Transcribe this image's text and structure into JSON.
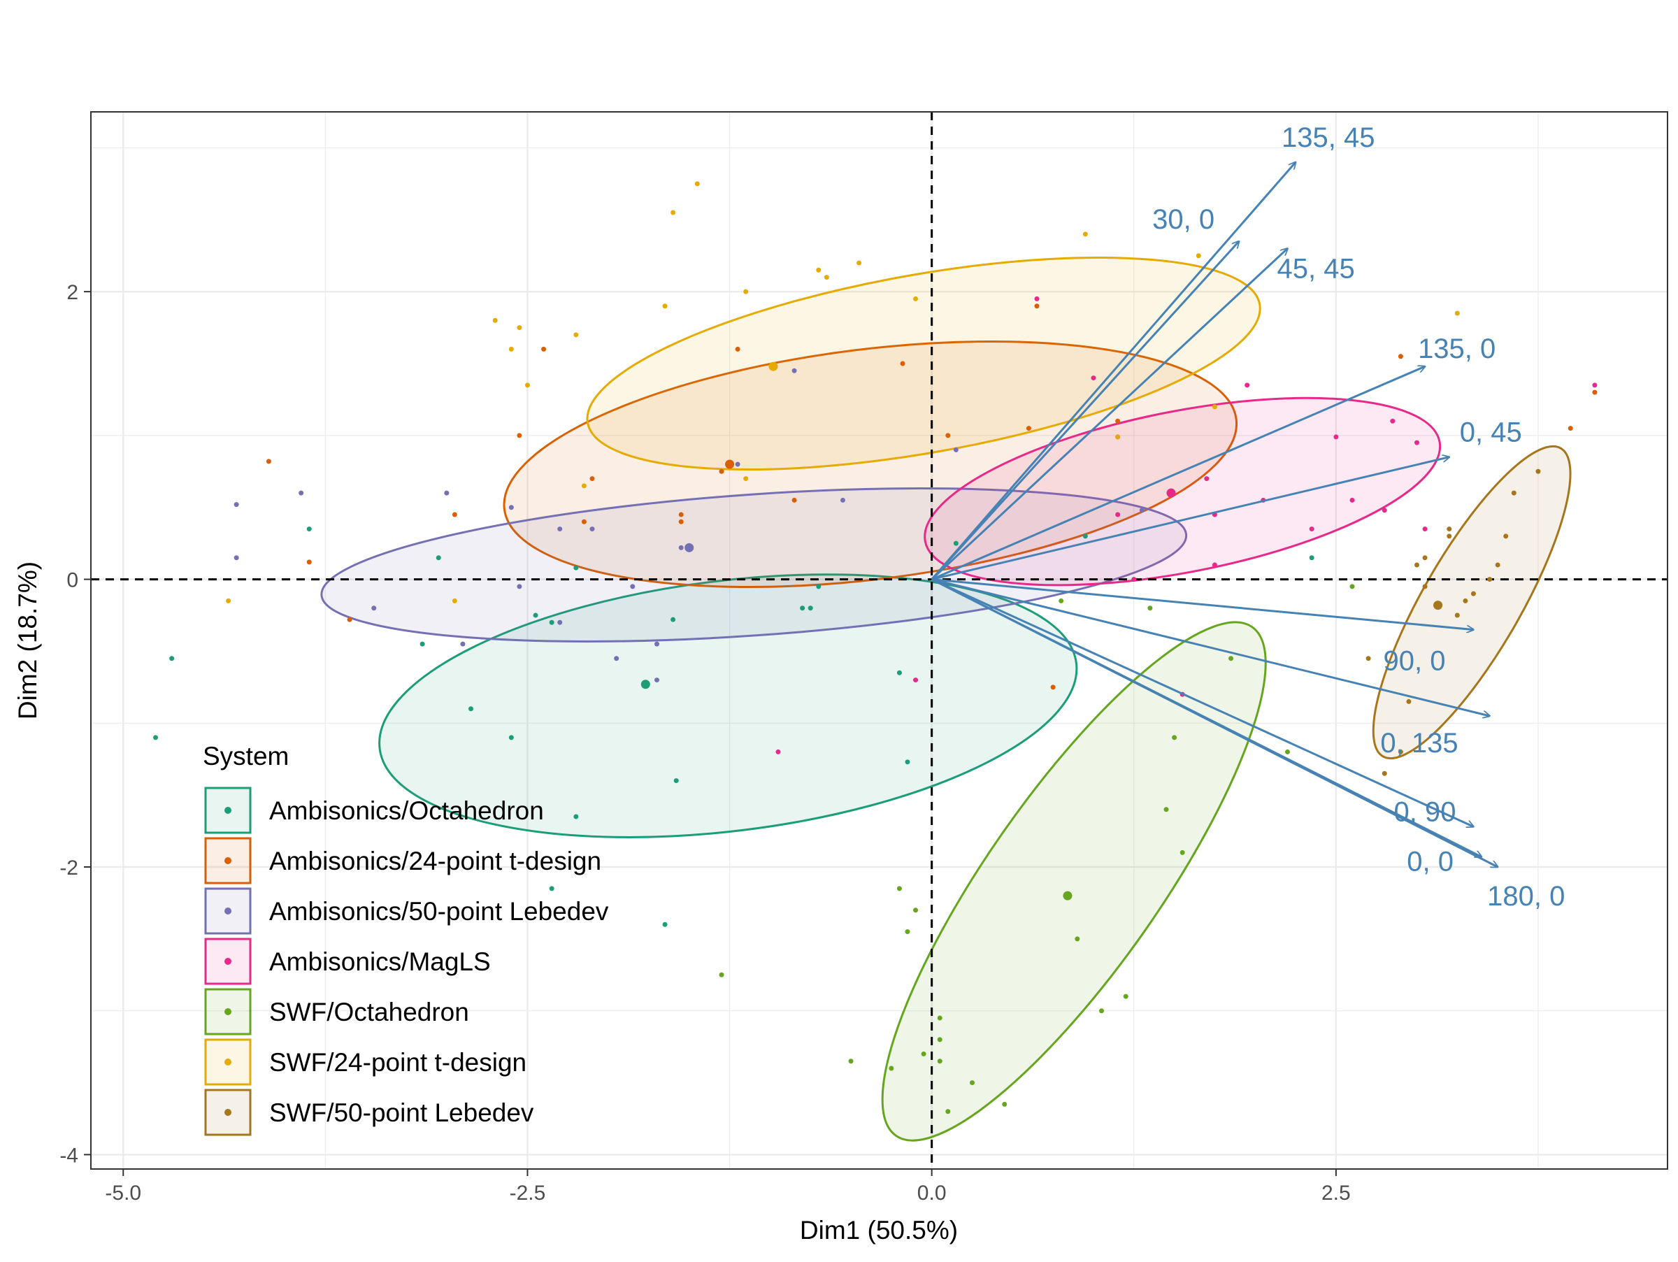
{
  "chart_data": {
    "type": "scatter",
    "title": "",
    "xlabel": "Dim1 (50.5%)",
    "ylabel": "Dim2 (18.7%)",
    "xlim": [
      -5.2,
      4.55
    ],
    "ylim": [
      -4.1,
      3.25
    ],
    "x_ticks": [
      -5.0,
      -2.5,
      0.0,
      2.5
    ],
    "x_tick_labels": [
      "-5.0",
      "-2.5",
      "0.0",
      "2.5"
    ],
    "y_ticks": [
      -4,
      -2,
      0,
      2
    ],
    "y_tick_labels": [
      "-4",
      "-2",
      "0",
      "2"
    ],
    "grid": true,
    "reference_lines": {
      "x": 0,
      "y": 0,
      "style": "dashed"
    },
    "legend": {
      "title": "System",
      "position": "bottom-left",
      "entries": [
        {
          "label": "Ambisonics/Octahedron",
          "color": "#1b9e77"
        },
        {
          "label": "Ambisonics/24-point t-design",
          "color": "#d95f02"
        },
        {
          "label": "Ambisonics/50-point Lebedev",
          "color": "#7570b3"
        },
        {
          "label": "Ambisonics/MagLS",
          "color": "#e7298a"
        },
        {
          "label": "SWF/Octahedron",
          "color": "#66a61e"
        },
        {
          "label": "SWF/24-point t-design",
          "color": "#e6ab02"
        },
        {
          "label": "SWF/50-point Lebedev",
          "color": "#a6761d"
        }
      ]
    },
    "series": [
      {
        "name": "Ambisonics/Octahedron",
        "color": "#1b9e77",
        "centroid": [
          -1.77,
          -0.73
        ],
        "ellipse": {
          "cx": -1.26,
          "cy": -0.88,
          "rx": 2.17,
          "ry": 0.87,
          "angle_deg": 7
        },
        "points": [
          [
            -4.8,
            -1.1
          ],
          [
            -4.7,
            -0.55
          ],
          [
            -3.85,
            0.35
          ],
          [
            -3.05,
            0.15
          ],
          [
            -3.15,
            -0.45
          ],
          [
            -2.85,
            -0.9
          ],
          [
            -2.6,
            -1.1
          ],
          [
            -2.45,
            -0.25
          ],
          [
            -2.35,
            -0.3
          ],
          [
            -2.2,
            0.08
          ],
          [
            -2.2,
            -1.65
          ],
          [
            -2.35,
            -2.15
          ],
          [
            -1.65,
            -2.4
          ],
          [
            -1.6,
            -0.28
          ],
          [
            -1.58,
            -1.4
          ],
          [
            -0.8,
            -0.2
          ],
          [
            -0.75,
            -0.2
          ],
          [
            -0.7,
            -0.05
          ],
          [
            -0.2,
            -0.65
          ],
          [
            -0.15,
            -1.27
          ],
          [
            0.15,
            0.25
          ],
          [
            0.95,
            0.3
          ],
          [
            2.35,
            0.15
          ]
        ]
      },
      {
        "name": "Ambisonics/24-point t-design",
        "color": "#d95f02",
        "centroid": [
          -1.25,
          0.8
        ],
        "ellipse": {
          "cx": -0.38,
          "cy": 0.8,
          "rx": 2.28,
          "ry": 0.8,
          "angle_deg": 7
        },
        "points": [
          [
            -4.1,
            0.82
          ],
          [
            -3.85,
            0.12
          ],
          [
            -3.6,
            -0.28
          ],
          [
            -2.95,
            0.45
          ],
          [
            -2.55,
            1.0
          ],
          [
            -2.4,
            1.6
          ],
          [
            -2.1,
            0.7
          ],
          [
            -2.15,
            0.4
          ],
          [
            -1.55,
            0.4
          ],
          [
            -1.55,
            0.45
          ],
          [
            -1.3,
            0.75
          ],
          [
            -1.2,
            1.6
          ],
          [
            -0.85,
            0.55
          ],
          [
            -0.18,
            1.5
          ],
          [
            0.1,
            1.0
          ],
          [
            0.6,
            1.05
          ],
          [
            0.65,
            1.9
          ],
          [
            0.75,
            -0.75
          ],
          [
            1.15,
            1.1
          ],
          [
            2.9,
            1.55
          ],
          [
            3.95,
            1.05
          ],
          [
            4.1,
            1.3
          ]
        ]
      },
      {
        "name": "Ambisonics/50-point Lebedev",
        "color": "#7570b3",
        "centroid": [
          -1.5,
          0.22
        ],
        "ellipse": {
          "cx": -1.1,
          "cy": 0.1,
          "rx": 2.68,
          "ry": 0.49,
          "angle_deg": 4
        },
        "points": [
          [
            -4.3,
            0.15
          ],
          [
            -4.3,
            0.52
          ],
          [
            -3.9,
            0.6
          ],
          [
            -3.45,
            -0.2
          ],
          [
            -3.0,
            0.6
          ],
          [
            -2.9,
            -0.45
          ],
          [
            -2.6,
            0.5
          ],
          [
            -2.55,
            -0.05
          ],
          [
            -2.3,
            0.35
          ],
          [
            -2.3,
            -0.3
          ],
          [
            -2.1,
            0.35
          ],
          [
            -1.95,
            -0.55
          ],
          [
            -1.7,
            -0.7
          ],
          [
            -1.85,
            -0.05
          ],
          [
            -1.7,
            -0.45
          ],
          [
            -1.55,
            0.22
          ],
          [
            -1.2,
            0.8
          ],
          [
            -0.85,
            1.45
          ],
          [
            -0.55,
            0.55
          ],
          [
            0.15,
            0.9
          ],
          [
            1.3,
            0.48
          ]
        ]
      },
      {
        "name": "Ambisonics/MagLS",
        "color": "#e7298a",
        "centroid": [
          1.48,
          0.6
        ],
        "ellipse": {
          "cx": 1.55,
          "cy": 0.61,
          "rx": 1.62,
          "ry": 0.56,
          "angle_deg": 11
        },
        "points": [
          [
            -0.95,
            -1.2
          ],
          [
            -0.1,
            -0.7
          ],
          [
            0.65,
            1.95
          ],
          [
            1.0,
            1.4
          ],
          [
            1.15,
            0.45
          ],
          [
            1.15,
            0.99
          ],
          [
            1.25,
            0.0
          ],
          [
            1.55,
            -0.8
          ],
          [
            1.7,
            0.7
          ],
          [
            1.75,
            0.45
          ],
          [
            1.75,
            0.1
          ],
          [
            1.95,
            1.35
          ],
          [
            2.05,
            0.55
          ],
          [
            2.35,
            0.35
          ],
          [
            2.5,
            0.99
          ],
          [
            2.6,
            0.55
          ],
          [
            2.8,
            0.48
          ],
          [
            2.85,
            1.1
          ],
          [
            3.0,
            0.95
          ],
          [
            3.05,
            0.35
          ],
          [
            4.1,
            1.35
          ]
        ]
      },
      {
        "name": "SWF/Octahedron",
        "color": "#66a61e",
        "centroid": [
          0.84,
          -2.2
        ],
        "ellipse": {
          "cx": 0.88,
          "cy": -2.1,
          "rx": 1.92,
          "ry": 0.6,
          "angle_deg": 55
        },
        "points": [
          [
            -1.3,
            -2.75
          ],
          [
            -0.5,
            -3.35
          ],
          [
            -0.25,
            -3.4
          ],
          [
            -0.2,
            -2.15
          ],
          [
            -0.15,
            -2.45
          ],
          [
            -0.1,
            -2.3
          ],
          [
            -0.05,
            -3.3
          ],
          [
            0.05,
            -3.2
          ],
          [
            0.05,
            -3.05
          ],
          [
            0.05,
            -3.35
          ],
          [
            0.1,
            -3.7
          ],
          [
            0.25,
            -3.5
          ],
          [
            0.45,
            -3.65
          ],
          [
            0.8,
            -0.15
          ],
          [
            0.9,
            -2.5
          ],
          [
            1.05,
            -3.0
          ],
          [
            1.2,
            -2.9
          ],
          [
            1.35,
            -0.2
          ],
          [
            1.45,
            -1.6
          ],
          [
            1.5,
            -1.1
          ],
          [
            1.55,
            -1.9
          ],
          [
            1.85,
            -0.55
          ],
          [
            2.2,
            -1.2
          ],
          [
            2.6,
            -0.05
          ]
        ]
      },
      {
        "name": "SWF/24-point t-design",
        "color": "#e6ab02",
        "centroid": [
          -0.98,
          1.48
        ],
        "ellipse": {
          "cx": -0.05,
          "cy": 1.5,
          "rx": 2.11,
          "ry": 0.62,
          "angle_deg": 10
        },
        "points": [
          [
            -4.35,
            -0.15
          ],
          [
            -2.95,
            -0.15
          ],
          [
            -2.7,
            1.8
          ],
          [
            -2.6,
            1.6
          ],
          [
            -2.55,
            1.75
          ],
          [
            -2.5,
            1.35
          ],
          [
            -2.2,
            1.7
          ],
          [
            -2.15,
            0.65
          ],
          [
            -1.6,
            2.55
          ],
          [
            -1.45,
            2.75
          ],
          [
            -1.65,
            1.9
          ],
          [
            -1.15,
            0.7
          ],
          [
            -1.15,
            2.0
          ],
          [
            -0.7,
            2.15
          ],
          [
            -0.65,
            2.1
          ],
          [
            -0.45,
            2.2
          ],
          [
            -0.1,
            1.95
          ],
          [
            0.95,
            2.4
          ],
          [
            1.15,
            0.99
          ],
          [
            1.65,
            2.25
          ],
          [
            1.75,
            1.2
          ],
          [
            3.25,
            1.85
          ]
        ]
      },
      {
        "name": "SWF/50-point Lebedev",
        "color": "#a6761d",
        "centroid": [
          3.13,
          -0.18
        ],
        "ellipse": {
          "cx": 3.34,
          "cy": -0.16,
          "rx": 1.1,
          "ry": 0.34,
          "angle_deg": 60
        },
        "points": [
          [
            2.7,
            -0.55
          ],
          [
            2.8,
            -1.35
          ],
          [
            2.9,
            -1.2
          ],
          [
            2.95,
            -0.85
          ],
          [
            3.0,
            0.1
          ],
          [
            3.05,
            -0.05
          ],
          [
            3.05,
            0.15
          ],
          [
            3.2,
            0.3
          ],
          [
            3.2,
            0.35
          ],
          [
            3.25,
            -0.25
          ],
          [
            3.3,
            -0.15
          ],
          [
            3.35,
            -0.1
          ],
          [
            3.45,
            0.0
          ],
          [
            3.5,
            0.1
          ],
          [
            3.55,
            0.3
          ],
          [
            3.6,
            0.6
          ],
          [
            3.75,
            0.75
          ]
        ]
      }
    ],
    "vectors": {
      "color": "#4682b4",
      "origin": [
        0,
        0
      ],
      "items": [
        {
          "label": "135, 45",
          "x": 2.25,
          "y": 2.9
        },
        {
          "label": "30, 0",
          "x": 1.9,
          "y": 2.35
        },
        {
          "label": "45, 45",
          "x": 2.2,
          "y": 2.3
        },
        {
          "label": "135, 0",
          "x": 3.05,
          "y": 1.48
        },
        {
          "label": "0, 45",
          "x": 3.2,
          "y": 0.85
        },
        {
          "label": "90, 0",
          "x": 3.35,
          "y": -0.35
        },
        {
          "label": "0, 135",
          "x": 3.45,
          "y": -0.95
        },
        {
          "label": "0, 90",
          "x": 3.35,
          "y": -1.72
        },
        {
          "label": "0, 0",
          "x": 3.4,
          "y": -1.93
        },
        {
          "label": "180, 0",
          "x": 3.5,
          "y": -2.0
        }
      ]
    }
  }
}
